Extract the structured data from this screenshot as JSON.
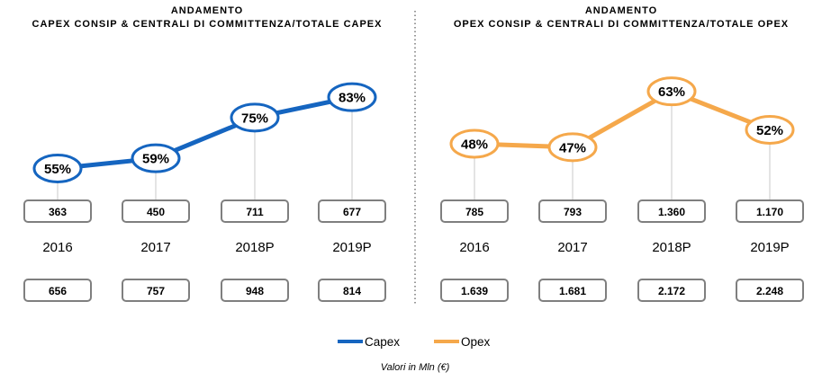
{
  "chart_data": [
    {
      "type": "line",
      "title_line1": "ANDAMENTO",
      "title_line2": "CAPEX CONSIP & CENTRALI DI COMMITTENZA/TOTALE CAPEX",
      "categories": [
        "2016",
        "2017",
        "2018P",
        "2019P"
      ],
      "series": [
        {
          "name": "Capex",
          "values": [
            55,
            59,
            75,
            83
          ],
          "labels": [
            "55%",
            "59%",
            "75%",
            "83%"
          ]
        }
      ],
      "row1_values": [
        "363",
        "450",
        "711",
        "677"
      ],
      "row2_values": [
        "656",
        "757",
        "948",
        "814"
      ],
      "color": "#1565c0"
    },
    {
      "type": "line",
      "title_line1": "ANDAMENTO",
      "title_line2": "OPEX CONSIP & CENTRALI DI COMMITTENZA/TOTALE OPEX",
      "categories": [
        "2016",
        "2017",
        "2018P",
        "2019P"
      ],
      "series": [
        {
          "name": "Opex",
          "values": [
            48,
            47,
            63,
            52
          ],
          "labels": [
            "48%",
            "47%",
            "63%",
            "52%"
          ]
        }
      ],
      "row1_values": [
        "785",
        "793",
        "1.360",
        "1.170"
      ],
      "row2_values": [
        "1.639",
        "1.681",
        "2.172",
        "2.248"
      ],
      "color": "#f5a84b"
    }
  ],
  "legend": {
    "capex": "Capex",
    "opex": "Opex"
  },
  "footnote": "Valori in Mln (€)"
}
